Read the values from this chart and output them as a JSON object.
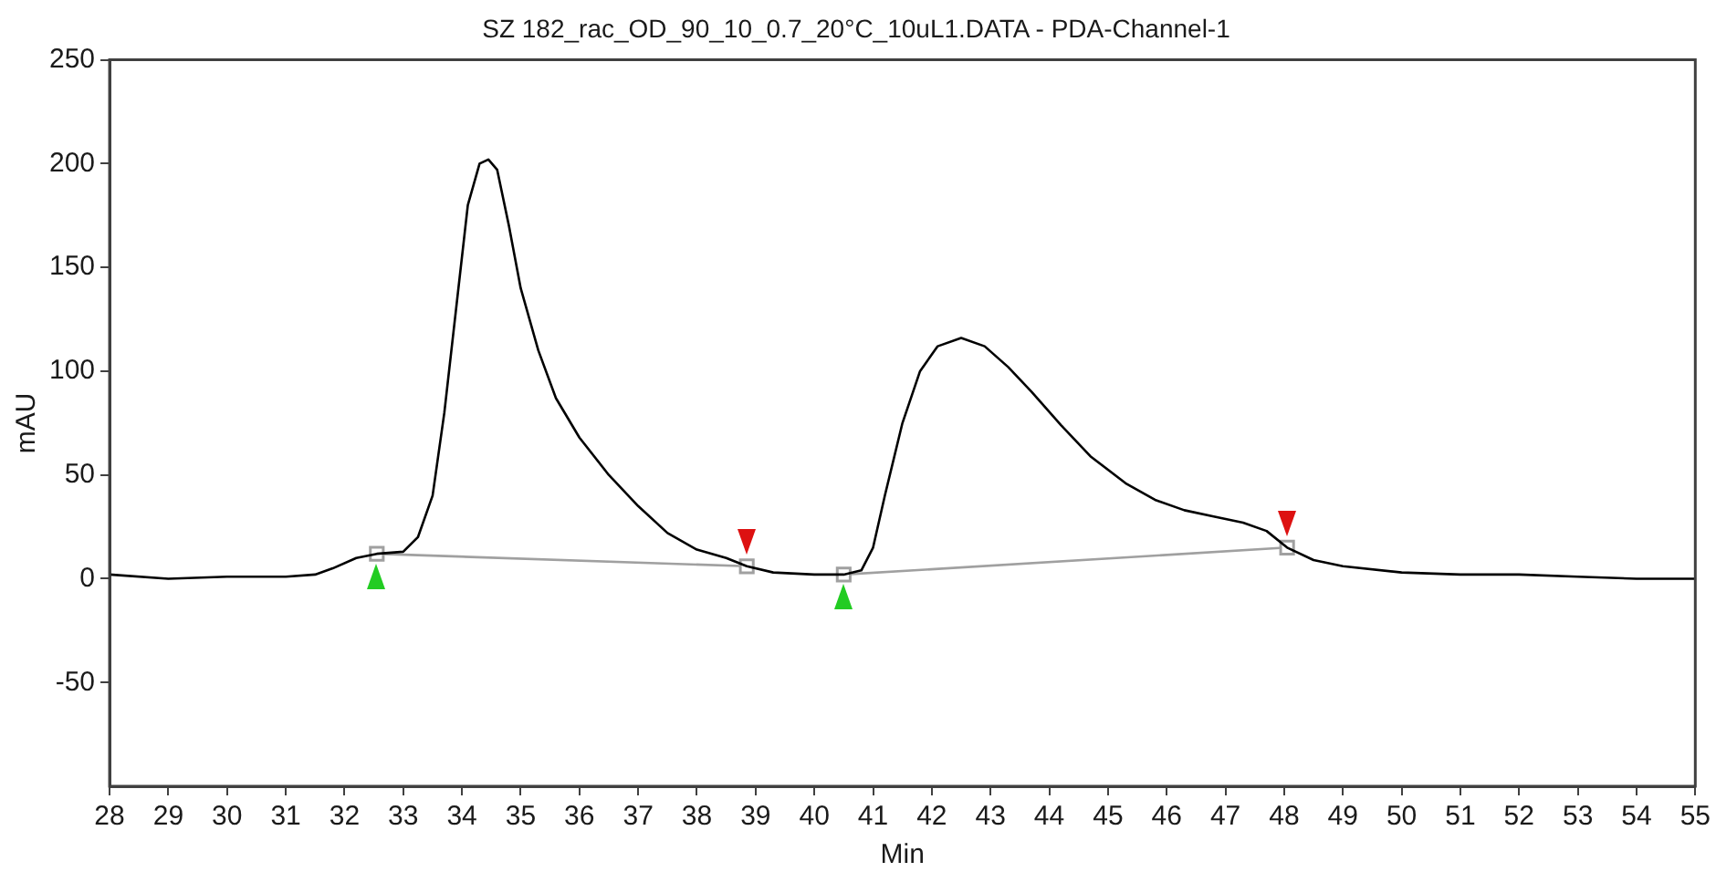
{
  "chart_data": {
    "type": "line",
    "title": "SZ 182_rac_OD_90_10_0.7_20°C_10uL1.DATA - PDA-Channel-1",
    "xlabel": "Min",
    "ylabel": "mAU",
    "xlim": [
      28,
      55
    ],
    "xticks": [
      28,
      29,
      30,
      31,
      32,
      33,
      34,
      35,
      36,
      37,
      38,
      39,
      40,
      41,
      42,
      43,
      44,
      45,
      46,
      47,
      48,
      49,
      50,
      51,
      52,
      53,
      54,
      55
    ],
    "ylim": [
      -100,
      250
    ],
    "yticks": [
      -50,
      0,
      50,
      100,
      150,
      200,
      250
    ],
    "grid": false,
    "legend": false,
    "marker": "none",
    "series": [
      {
        "color": "#000000",
        "x": [
          28,
          29,
          30,
          31,
          31.5,
          31.8,
          32.2,
          32.55,
          33.0,
          33.25,
          33.5,
          33.7,
          33.9,
          34.1,
          34.3,
          34.45,
          34.6,
          34.8,
          35.0,
          35.3,
          35.6,
          36,
          36.5,
          37,
          37.5,
          38,
          38.5,
          38.85,
          39.3,
          40,
          40.5,
          40.8,
          41.0,
          41.2,
          41.5,
          41.8,
          42.1,
          42.5,
          42.9,
          43.3,
          43.7,
          44.2,
          44.7,
          45.3,
          45.8,
          46.3,
          46.8,
          47.3,
          47.7,
          48.05,
          48.5,
          49,
          50,
          51,
          52,
          53,
          54,
          55
        ],
        "values": [
          2,
          0,
          1,
          1,
          2,
          5,
          10,
          12,
          13,
          20,
          40,
          80,
          130,
          180,
          200,
          202,
          197,
          170,
          140,
          110,
          87,
          68,
          50,
          35,
          22,
          14,
          10,
          6,
          3,
          2,
          2,
          4,
          15,
          40,
          75,
          100,
          112,
          116,
          112,
          102,
          90,
          74,
          59,
          46,
          38,
          33,
          30,
          27,
          23,
          15,
          9,
          6,
          3,
          2,
          2,
          1,
          0,
          0
        ]
      },
      {
        "color": "#a0a0a0",
        "marker": "square",
        "x": [
          32.55,
          38.85
        ],
        "values": [
          12,
          6
        ]
      },
      {
        "color": "#a0a0a0",
        "marker": "square",
        "x": [
          40.5,
          48.05
        ],
        "values": [
          2,
          15
        ]
      }
    ]
  }
}
